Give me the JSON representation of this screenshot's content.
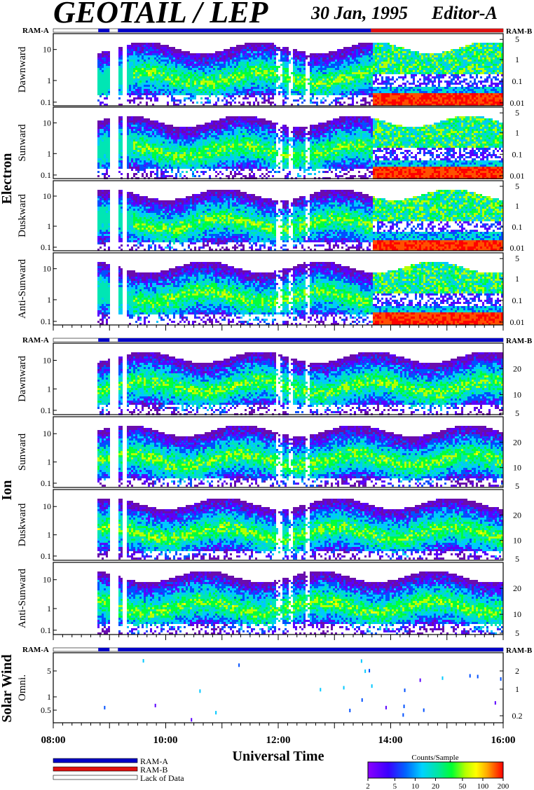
{
  "header": {
    "title": "GEOTAIL / LEP",
    "date": "30 Jan, 1995",
    "editor": "Editor-A"
  },
  "colors": {
    "ram_a": "#0000c8",
    "ram_b": "#e01010",
    "lack_of_data": "#ffffff",
    "colorscale": [
      "#6a0dad",
      "#5a00ff",
      "#0050ff",
      "#00c8ff",
      "#00e6b4",
      "#00ff3c",
      "#b4ff00",
      "#ffff00",
      "#ffb400",
      "#ff5000",
      "#ff0000"
    ]
  },
  "chart_data": {
    "type": "heatmap",
    "xlabel": "Universal Time",
    "x_ticks": [
      "08:00",
      "10:00",
      "12:00",
      "14:00",
      "16:00"
    ],
    "xlim_hours": [
      8,
      16
    ],
    "groups": [
      {
        "name": "Electron",
        "ram_left": "RAM-A",
        "ram_right": "RAM-B",
        "ram_segments": [
          {
            "mode": "RAM-A",
            "start": 8.8,
            "end": 9.0
          },
          {
            "mode": "RAM-A",
            "start": 9.15,
            "end": 13.65
          },
          {
            "mode": "RAM-B",
            "start": 13.65,
            "end": 16.0
          }
        ],
        "left_ticks": [
          "10",
          "1",
          "0.1"
        ],
        "right_ticks": [
          "5",
          "1",
          "0.1",
          "0.01"
        ],
        "panels": [
          {
            "label": "Dawnward"
          },
          {
            "label": "Sunward"
          },
          {
            "label": "Duskward"
          },
          {
            "label": "Anti-Sunward"
          }
        ]
      },
      {
        "name": "Ion",
        "ram_left": "RAM-A",
        "ram_right": "RAM-B",
        "ram_segments": [
          {
            "mode": "RAM-A",
            "start": 8.8,
            "end": 9.0
          },
          {
            "mode": "RAM-A",
            "start": 9.15,
            "end": 16.0
          }
        ],
        "left_ticks": [
          "10",
          "1",
          "0.1"
        ],
        "right_ticks": [
          "20",
          "10",
          "5"
        ],
        "panels": [
          {
            "label": "Dawnward"
          },
          {
            "label": "Sunward"
          },
          {
            "label": "Duskward"
          },
          {
            "label": "Anti-Sunward"
          }
        ]
      },
      {
        "name": "Solar Wind",
        "ram_left": "RAM-A",
        "ram_right": "RAM-B",
        "ram_segments": [
          {
            "mode": "RAM-A",
            "start": 8.8,
            "end": 9.0
          },
          {
            "mode": "RAM-A",
            "start": 9.15,
            "end": 16.0
          }
        ],
        "left_ticks": [
          "5",
          "1",
          "0.5"
        ],
        "right_ticks": [
          "2",
          "1",
          "0.2"
        ],
        "panels": [
          {
            "label": "Omni."
          }
        ]
      }
    ],
    "legend": {
      "items": [
        "RAM-A",
        "RAM-B",
        "Lack of Data"
      ]
    },
    "colorbar": {
      "title": "Counts/Sample",
      "ticks": [
        "2",
        "5",
        "10",
        "20",
        "50",
        "100",
        "200"
      ]
    }
  }
}
